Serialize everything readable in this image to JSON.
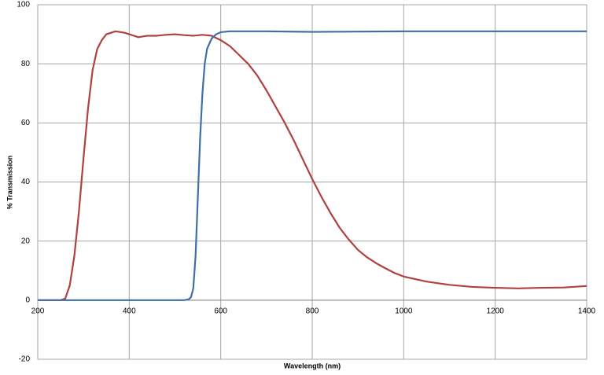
{
  "chart_data": {
    "type": "line",
    "xlabel": "Wavelength (nm)",
    "ylabel": "% Transmission",
    "xlim": [
      200,
      1400
    ],
    "xticks": [
      200,
      400,
      600,
      800,
      1000,
      1200,
      1400
    ],
    "ylim": [
      -20,
      100
    ],
    "yticks": [
      -20,
      0,
      20,
      40,
      60,
      80,
      100
    ],
    "grid": true,
    "series": [
      {
        "color": "#b0413e",
        "x": [
          200,
          250,
          260,
          270,
          280,
          290,
          300,
          310,
          320,
          330,
          340,
          350,
          370,
          390,
          400,
          420,
          440,
          460,
          480,
          500,
          520,
          540,
          560,
          580,
          600,
          620,
          640,
          660,
          680,
          700,
          720,
          740,
          760,
          780,
          800,
          820,
          840,
          860,
          880,
          900,
          920,
          940,
          960,
          980,
          1000,
          1050,
          1100,
          1150,
          1200,
          1250,
          1300,
          1350,
          1400
        ],
        "values": [
          0,
          0,
          0.5,
          5,
          15,
          30,
          48,
          65,
          78,
          85,
          88,
          90,
          91,
          90.5,
          90,
          89,
          89.5,
          89.5,
          89.8,
          90,
          89.7,
          89.5,
          89.8,
          89.5,
          88,
          86,
          83,
          80,
          76,
          71,
          65.5,
          60,
          54,
          47.5,
          41,
          35,
          29.5,
          24.5,
          20.5,
          17,
          14.5,
          12.5,
          10.8,
          9.2,
          8,
          6.3,
          5.2,
          4.5,
          4.2,
          4,
          4.2,
          4.3,
          4.8
        ]
      },
      {
        "color": "#3f6fa8",
        "x": [
          200,
          520,
          530,
          535,
          540,
          545,
          550,
          555,
          560,
          565,
          570,
          580,
          590,
          600,
          620,
          700,
          800,
          900,
          1000,
          1200,
          1400
        ],
        "values": [
          0,
          0,
          0.3,
          1,
          4,
          15,
          35,
          55,
          70,
          80,
          85,
          88.5,
          90,
          90.7,
          91,
          91,
          90.8,
          90.9,
          91,
          91,
          91
        ]
      }
    ]
  }
}
